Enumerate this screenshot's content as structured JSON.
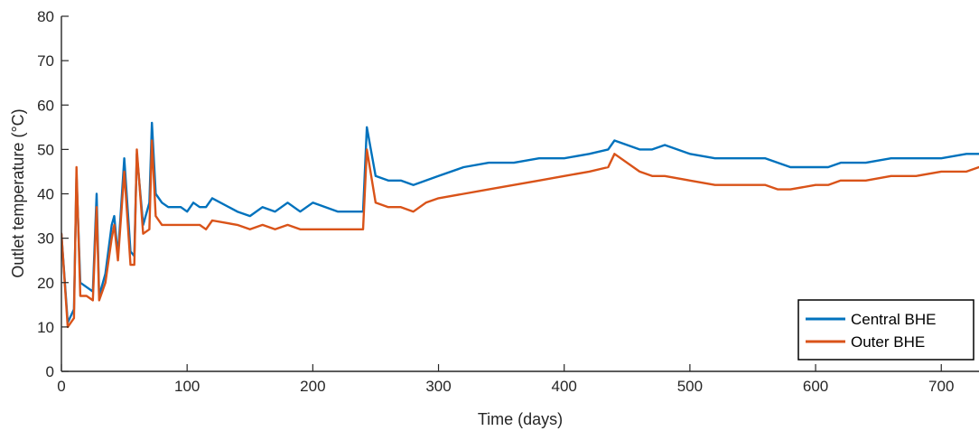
{
  "chart_data": {
    "type": "line",
    "title": "",
    "xlabel": "Time (days)",
    "ylabel": "Outlet temperature (°C)",
    "xlim": [
      0,
      730
    ],
    "ylim": [
      0,
      80
    ],
    "xticks": [
      0,
      100,
      200,
      300,
      400,
      500,
      600,
      700
    ],
    "yticks": [
      0,
      10,
      20,
      30,
      40,
      50,
      60,
      70,
      80
    ],
    "grid": false,
    "legend": "bottom-right",
    "series": [
      {
        "name": "Central BHE",
        "color": "#0072BD",
        "x": [
          0,
          5,
          10,
          12,
          15,
          20,
          25,
          28,
          30,
          35,
          40,
          42,
          45,
          50,
          55,
          58,
          60,
          65,
          70,
          72,
          75,
          80,
          85,
          90,
          95,
          100,
          105,
          110,
          115,
          120,
          140,
          150,
          160,
          170,
          180,
          190,
          200,
          210,
          220,
          230,
          240,
          243,
          250,
          260,
          270,
          280,
          290,
          300,
          320,
          340,
          360,
          380,
          400,
          420,
          435,
          440,
          460,
          470,
          480,
          500,
          520,
          540,
          560,
          570,
          580,
          600,
          610,
          620,
          640,
          660,
          680,
          700,
          720,
          730
        ],
        "y": [
          31,
          11,
          14,
          44,
          20,
          19,
          18,
          40,
          17,
          22,
          33,
          35,
          26,
          48,
          27,
          26,
          49,
          33,
          38,
          56,
          40,
          38,
          37,
          37,
          37,
          36,
          38,
          37,
          37,
          39,
          36,
          35,
          37,
          36,
          38,
          36,
          38,
          37,
          36,
          36,
          36,
          55,
          44,
          43,
          43,
          42,
          43,
          44,
          46,
          47,
          47,
          48,
          48,
          49,
          50,
          52,
          50,
          50,
          51,
          49,
          48,
          48,
          48,
          47,
          46,
          46,
          46,
          47,
          47,
          48,
          48,
          48,
          49,
          49
        ]
      },
      {
        "name": "Outer BHE",
        "color": "#D95319",
        "x": [
          0,
          5,
          10,
          12,
          15,
          20,
          25,
          28,
          30,
          35,
          40,
          42,
          45,
          50,
          55,
          58,
          60,
          65,
          70,
          72,
          75,
          80,
          85,
          90,
          95,
          100,
          105,
          110,
          115,
          120,
          140,
          150,
          160,
          170,
          180,
          190,
          200,
          210,
          220,
          230,
          240,
          243,
          250,
          260,
          270,
          280,
          290,
          300,
          320,
          340,
          360,
          380,
          400,
          420,
          435,
          440,
          460,
          470,
          480,
          500,
          520,
          540,
          560,
          570,
          580,
          600,
          610,
          620,
          640,
          660,
          680,
          700,
          720,
          730
        ],
        "y": [
          31,
          10,
          12,
          46,
          17,
          17,
          16,
          37,
          16,
          20,
          30,
          33,
          25,
          45,
          24,
          24,
          50,
          31,
          32,
          52,
          35,
          33,
          33,
          33,
          33,
          33,
          33,
          33,
          32,
          34,
          33,
          32,
          33,
          32,
          33,
          32,
          32,
          32,
          32,
          32,
          32,
          50,
          38,
          37,
          37,
          36,
          38,
          39,
          40,
          41,
          42,
          43,
          44,
          45,
          46,
          49,
          45,
          44,
          44,
          43,
          42,
          42,
          42,
          41,
          41,
          42,
          42,
          43,
          43,
          44,
          44,
          45,
          45,
          46
        ]
      }
    ]
  }
}
